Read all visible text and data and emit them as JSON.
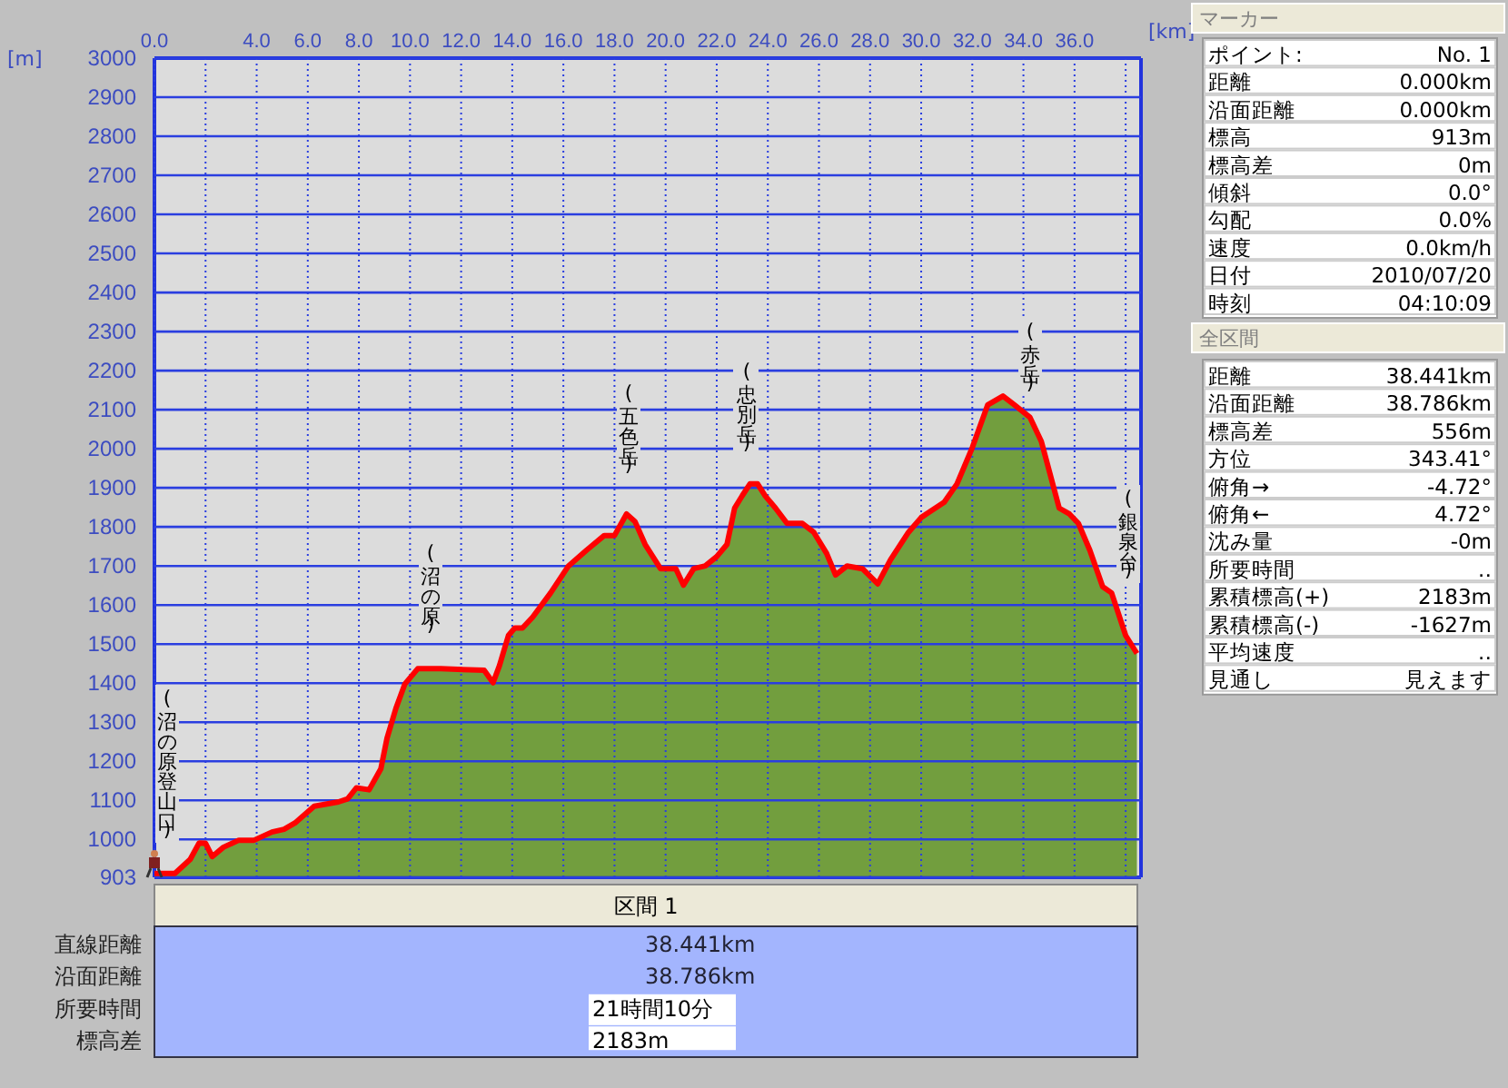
{
  "chart_data": [
    {
      "type": "area",
      "xlabel": "[km]",
      "ylabel": "[m]",
      "grid": true,
      "x": [
        0,
        0.8,
        1.4,
        1.75,
        2.0,
        2.26,
        2.7,
        3.3,
        3.9,
        4.6,
        5.07,
        5.5,
        6.25,
        7.2,
        7.56,
        7.9,
        8.4,
        8.86,
        9.1,
        9.45,
        9.8,
        10.3,
        11.2,
        12.9,
        13.25,
        13.5,
        13.85,
        14.1,
        14.4,
        14.8,
        15.5,
        16.2,
        16.9,
        17.6,
        18.0,
        18.47,
        18.8,
        19.2,
        19.8,
        20.4,
        20.7,
        21.1,
        21.55,
        22.0,
        22.4,
        22.7,
        23.0,
        23.3,
        23.6,
        23.9,
        24.3,
        24.75,
        25.35,
        25.8,
        26.3,
        26.65,
        27.1,
        27.7,
        28.3,
        28.8,
        29.5,
        30.0,
        30.2,
        30.9,
        31.4,
        32.0,
        32.6,
        33.2,
        33.65,
        34.25,
        34.7,
        35.4,
        35.8,
        36.15,
        36.6,
        37.1,
        37.45,
        38.0,
        38.44
      ],
      "series": [
        {
          "type": "area",
          "color": "#6b9a35",
          "values": [
            913,
            913,
            949,
            991,
            990,
            956,
            980,
            998,
            998,
            1019,
            1026,
            1042,
            1085,
            1096,
            1104,
            1132,
            1127,
            1181,
            1259,
            1336,
            1398,
            1437,
            1437,
            1433,
            1401,
            1445,
            1522,
            1541,
            1541,
            1569,
            1631,
            1700,
            1740,
            1778,
            1778,
            1833,
            1814,
            1755,
            1693,
            1693,
            1651,
            1693,
            1700,
            1724,
            1755,
            1848,
            1880,
            1910,
            1910,
            1879,
            1848,
            1809,
            1809,
            1786,
            1732,
            1677,
            1700,
            1693,
            1654,
            1716,
            1786,
            1824,
            1833,
            1863,
            1910,
            2003,
            2112,
            2135,
            2112,
            2081,
            2019,
            1848,
            1833,
            1809,
            1740,
            1647,
            1631,
            1522,
            1476
          ]
        },
        {
          "type": "line",
          "color": "#ff0000",
          "values": [
            913,
            913,
            949,
            991,
            990,
            956,
            980,
            998,
            998,
            1019,
            1026,
            1042,
            1085,
            1096,
            1104,
            1132,
            1127,
            1181,
            1259,
            1336,
            1398,
            1437,
            1437,
            1433,
            1401,
            1445,
            1522,
            1541,
            1541,
            1569,
            1631,
            1700,
            1740,
            1778,
            1778,
            1833,
            1814,
            1755,
            1693,
            1693,
            1651,
            1693,
            1700,
            1724,
            1755,
            1848,
            1880,
            1910,
            1910,
            1879,
            1848,
            1809,
            1809,
            1786,
            1732,
            1677,
            1700,
            1693,
            1654,
            1716,
            1786,
            1824,
            1833,
            1863,
            1910,
            2003,
            2112,
            2135,
            2112,
            2081,
            2019,
            1848,
            1833,
            1809,
            1740,
            1647,
            1631,
            1522,
            1476
          ]
        }
      ],
      "xlim": [
        0,
        38.6
      ],
      "xticks": [
        {
          "value": 0,
          "label": "0.0"
        },
        {
          "value": 2,
          "label": null
        },
        {
          "value": 4,
          "label": "4.0"
        },
        {
          "value": 6,
          "label": "6.0"
        },
        {
          "value": 8,
          "label": "8.0"
        },
        {
          "value": 10,
          "label": "10.0"
        },
        {
          "value": 12,
          "label": "12.0"
        },
        {
          "value": 14,
          "label": "14.0"
        },
        {
          "value": 16,
          "label": "16.0"
        },
        {
          "value": 18,
          "label": "18.0"
        },
        {
          "value": 20,
          "label": "20.0"
        },
        {
          "value": 22,
          "label": "22.0"
        },
        {
          "value": 24,
          "label": "24.0"
        },
        {
          "value": 26,
          "label": "26.0"
        },
        {
          "value": 28,
          "label": "28.0"
        },
        {
          "value": 30,
          "label": "30.0"
        },
        {
          "value": 32,
          "label": "32.0"
        },
        {
          "value": 34,
          "label": "34.0"
        },
        {
          "value": 36,
          "label": "36.0"
        },
        {
          "value": 38,
          "label": null
        }
      ],
      "ylim": [
        903,
        3000
      ],
      "yticks": [
        903,
        1000,
        1100,
        1200,
        1300,
        1400,
        1500,
        1600,
        1700,
        1800,
        1900,
        2000,
        2100,
        2200,
        2300,
        2400,
        2500,
        2600,
        2700,
        2800,
        2900,
        3000
      ],
      "annotations": [
        "(沼の原登山口)",
        "(沼の原)",
        "(五色岳)",
        "(忠別岳)",
        "(赤岳)",
        "(銀泉台)"
      ]
    },
    {
      "type": "other",
      "title": "マーカー",
      "annotations": [
        "ポイント:",
        "No. 1",
        "距離",
        "0.000km",
        "沿面距離",
        "0.000km",
        "標高",
        "913m",
        "標高差",
        "0m",
        "傾斜",
        "0.0°",
        "勾配",
        "0.0%",
        "速度",
        "0.0km/h",
        "日付",
        "2010/07/20",
        "時刻",
        "04:10:09"
      ]
    },
    {
      "type": "other",
      "title": "全区間",
      "annotations": [
        "距離",
        "38.441km",
        "沿面距離",
        "38.786km",
        "標高差",
        "556m",
        "方位",
        "343.41°",
        "俯角→",
        "-4.72°",
        "俯角←",
        "4.72°",
        "沈み量",
        "-0m",
        "所要時間",
        "‥",
        "累積標高(+)",
        "2183m",
        "累積標高(-)",
        "-1627m",
        "平均速度",
        "‥",
        "見通し",
        "見えます"
      ]
    },
    {
      "type": "other",
      "title": "区間 1",
      "annotations": [
        "直線距離",
        "38.441km",
        "沿面距離",
        "38.786km",
        "所要時間",
        "21時間10分",
        "標高差",
        "2183m"
      ]
    }
  ]
}
